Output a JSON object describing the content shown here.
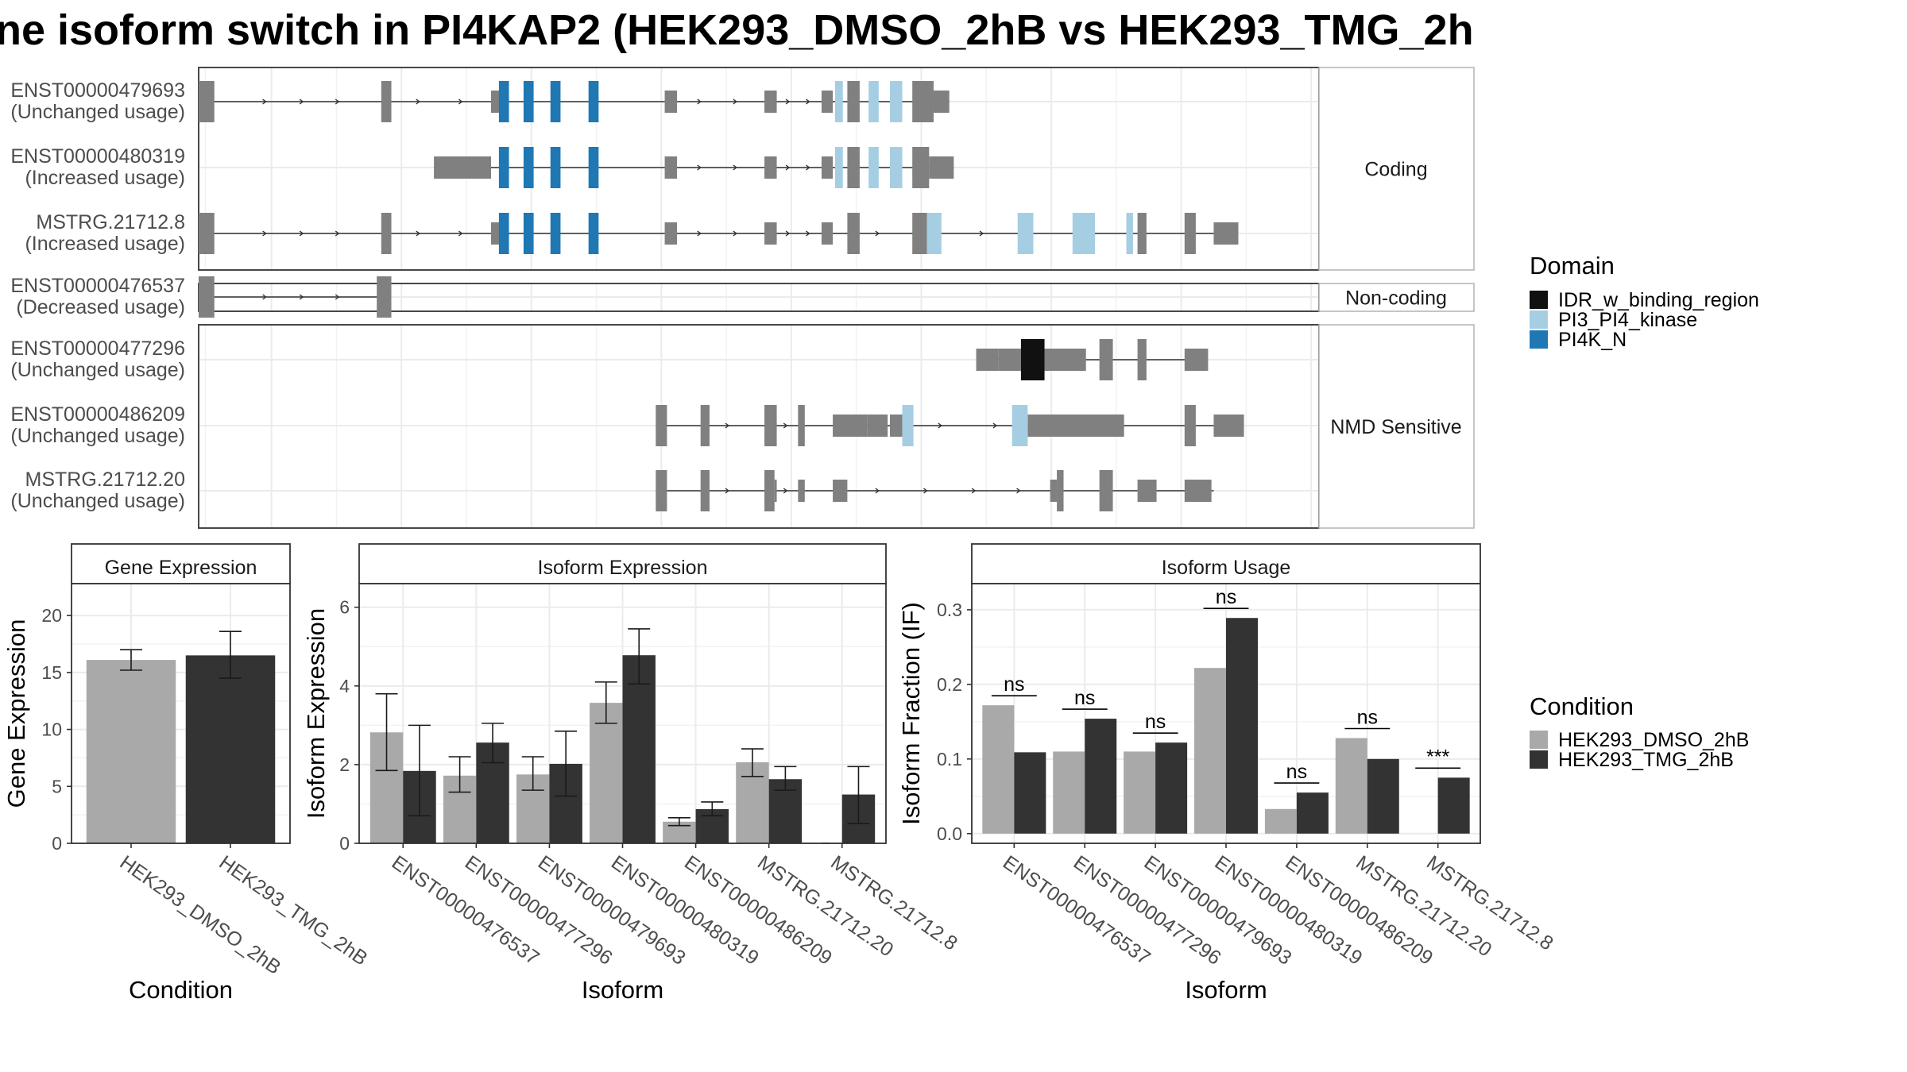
{
  "colors": {
    "pi4k_n": "#1F78B4",
    "pi3_pi4_kinase": "#A6CEE3",
    "idr_w_binding_region": "#111111",
    "exon": "#808080",
    "dmso": "#A9A9A9",
    "tmg": "#333333",
    "panel_border": "#333333",
    "strip_border": "#B3B3B3",
    "grid": "#EBEBEB"
  },
  "chart_data": [
    {
      "type": "gene_structure",
      "title": "ne isoform switch in PI4KAP2 (HEK293_DMSO_2hB vs HEK293_TMG_2h",
      "groups": [
        {
          "label": "Coding",
          "transcripts": [
            {
              "id": "ENST00000479693",
              "usage": "(Unchanged usage)"
            },
            {
              "id": "ENST00000480319",
              "usage": "(Increased usage)"
            },
            {
              "id": "MSTRG.21712.8",
              "usage": "(Increased usage)"
            }
          ]
        },
        {
          "label": "Non-coding",
          "transcripts": [
            {
              "id": "ENST00000476537",
              "usage": "(Decreased usage)"
            }
          ]
        },
        {
          "label": "NMD Sensitive",
          "transcripts": [
            {
              "id": "ENST00000477296",
              "usage": "(Unchanged usage)"
            },
            {
              "id": "ENST00000486209",
              "usage": "(Unchanged usage)"
            },
            {
              "id": "MSTRG.21712.20",
              "usage": "(Unchanged usage)"
            }
          ]
        }
      ],
      "legend": {
        "title": "Domain",
        "items": [
          {
            "label": "IDR_w_binding_region",
            "color_key": "idr_w_binding_region"
          },
          {
            "label": "PI3_PI4_kinase",
            "color_key": "pi3_pi4_kinase"
          },
          {
            "label": "PI4K_N",
            "color_key": "pi4k_n"
          }
        ]
      }
    },
    {
      "type": "bar",
      "title": "Gene Expression",
      "xlabel": "Condition",
      "ylabel": "Gene Expression",
      "ylim": [
        0,
        22.8
      ],
      "yticks": [
        0,
        5,
        10,
        15,
        20
      ],
      "categories": [
        "HEK293_DMSO_2hB",
        "HEK293_TMG_2hB"
      ],
      "values": [
        16.1,
        16.5
      ],
      "errors": [
        [
          15.2,
          17.0
        ],
        [
          14.5,
          18.6
        ]
      ]
    },
    {
      "type": "bar",
      "title": "Isoform Expression",
      "xlabel": "Isoform",
      "ylabel": "Isoform Expression",
      "ylim": [
        0,
        6.6
      ],
      "yticks": [
        0,
        2,
        4,
        6
      ],
      "categories": [
        "ENST00000476537",
        "ENST00000477296",
        "ENST00000479693",
        "ENST00000480319",
        "ENST00000486209",
        "MSTRG.21712.20",
        "MSTRG.21712.8"
      ],
      "series": [
        {
          "name": "HEK293_DMSO_2hB",
          "values": [
            2.82,
            1.72,
            1.75,
            3.57,
            0.55,
            2.06,
            0.0
          ],
          "errors": [
            [
              1.85,
              3.8
            ],
            [
              1.3,
              2.2
            ],
            [
              1.35,
              2.2
            ],
            [
              3.05,
              4.1
            ],
            [
              0.45,
              0.65
            ],
            [
              1.7,
              2.4
            ],
            [
              0.0,
              0.0
            ]
          ]
        },
        {
          "name": "HEK293_TMG_2hB",
          "values": [
            1.84,
            2.56,
            2.02,
            4.78,
            0.87,
            1.63,
            1.24
          ],
          "errors": [
            [
              0.7,
              3.0
            ],
            [
              2.05,
              3.05
            ],
            [
              1.2,
              2.85
            ],
            [
              4.05,
              5.45
            ],
            [
              0.7,
              1.05
            ],
            [
              1.35,
              1.95
            ],
            [
              0.5,
              1.95
            ]
          ]
        }
      ]
    },
    {
      "type": "bar",
      "title": "Isoform Usage",
      "xlabel": "Isoform",
      "ylabel": "Isoform Fraction (IF)",
      "ylim": [
        -0.013,
        0.335
      ],
      "yticks": [
        0.0,
        0.1,
        0.2,
        0.3
      ],
      "ytick_labels": [
        "0.0",
        "0.1",
        "0.2",
        "0.3"
      ],
      "categories": [
        "ENST00000476537",
        "ENST00000477296",
        "ENST00000479693",
        "ENST00000480319",
        "ENST00000486209",
        "MSTRG.21712.20",
        "MSTRG.21712.8"
      ],
      "series": [
        {
          "name": "HEK293_DMSO_2hB",
          "values": [
            0.172,
            0.11,
            0.11,
            0.222,
            0.033,
            0.128,
            0.0
          ]
        },
        {
          "name": "HEK293_TMG_2hB",
          "values": [
            0.109,
            0.154,
            0.122,
            0.289,
            0.055,
            0.1,
            0.075
          ]
        }
      ],
      "significance": [
        "ns",
        "ns",
        "ns",
        "ns",
        "ns",
        "ns",
        "***"
      ]
    }
  ],
  "condition_legend": {
    "title": "Condition",
    "items": [
      {
        "label": "HEK293_DMSO_2hB",
        "color_key": "dmso"
      },
      {
        "label": "HEK293_TMG_2hB",
        "color_key": "tmg"
      }
    ]
  }
}
